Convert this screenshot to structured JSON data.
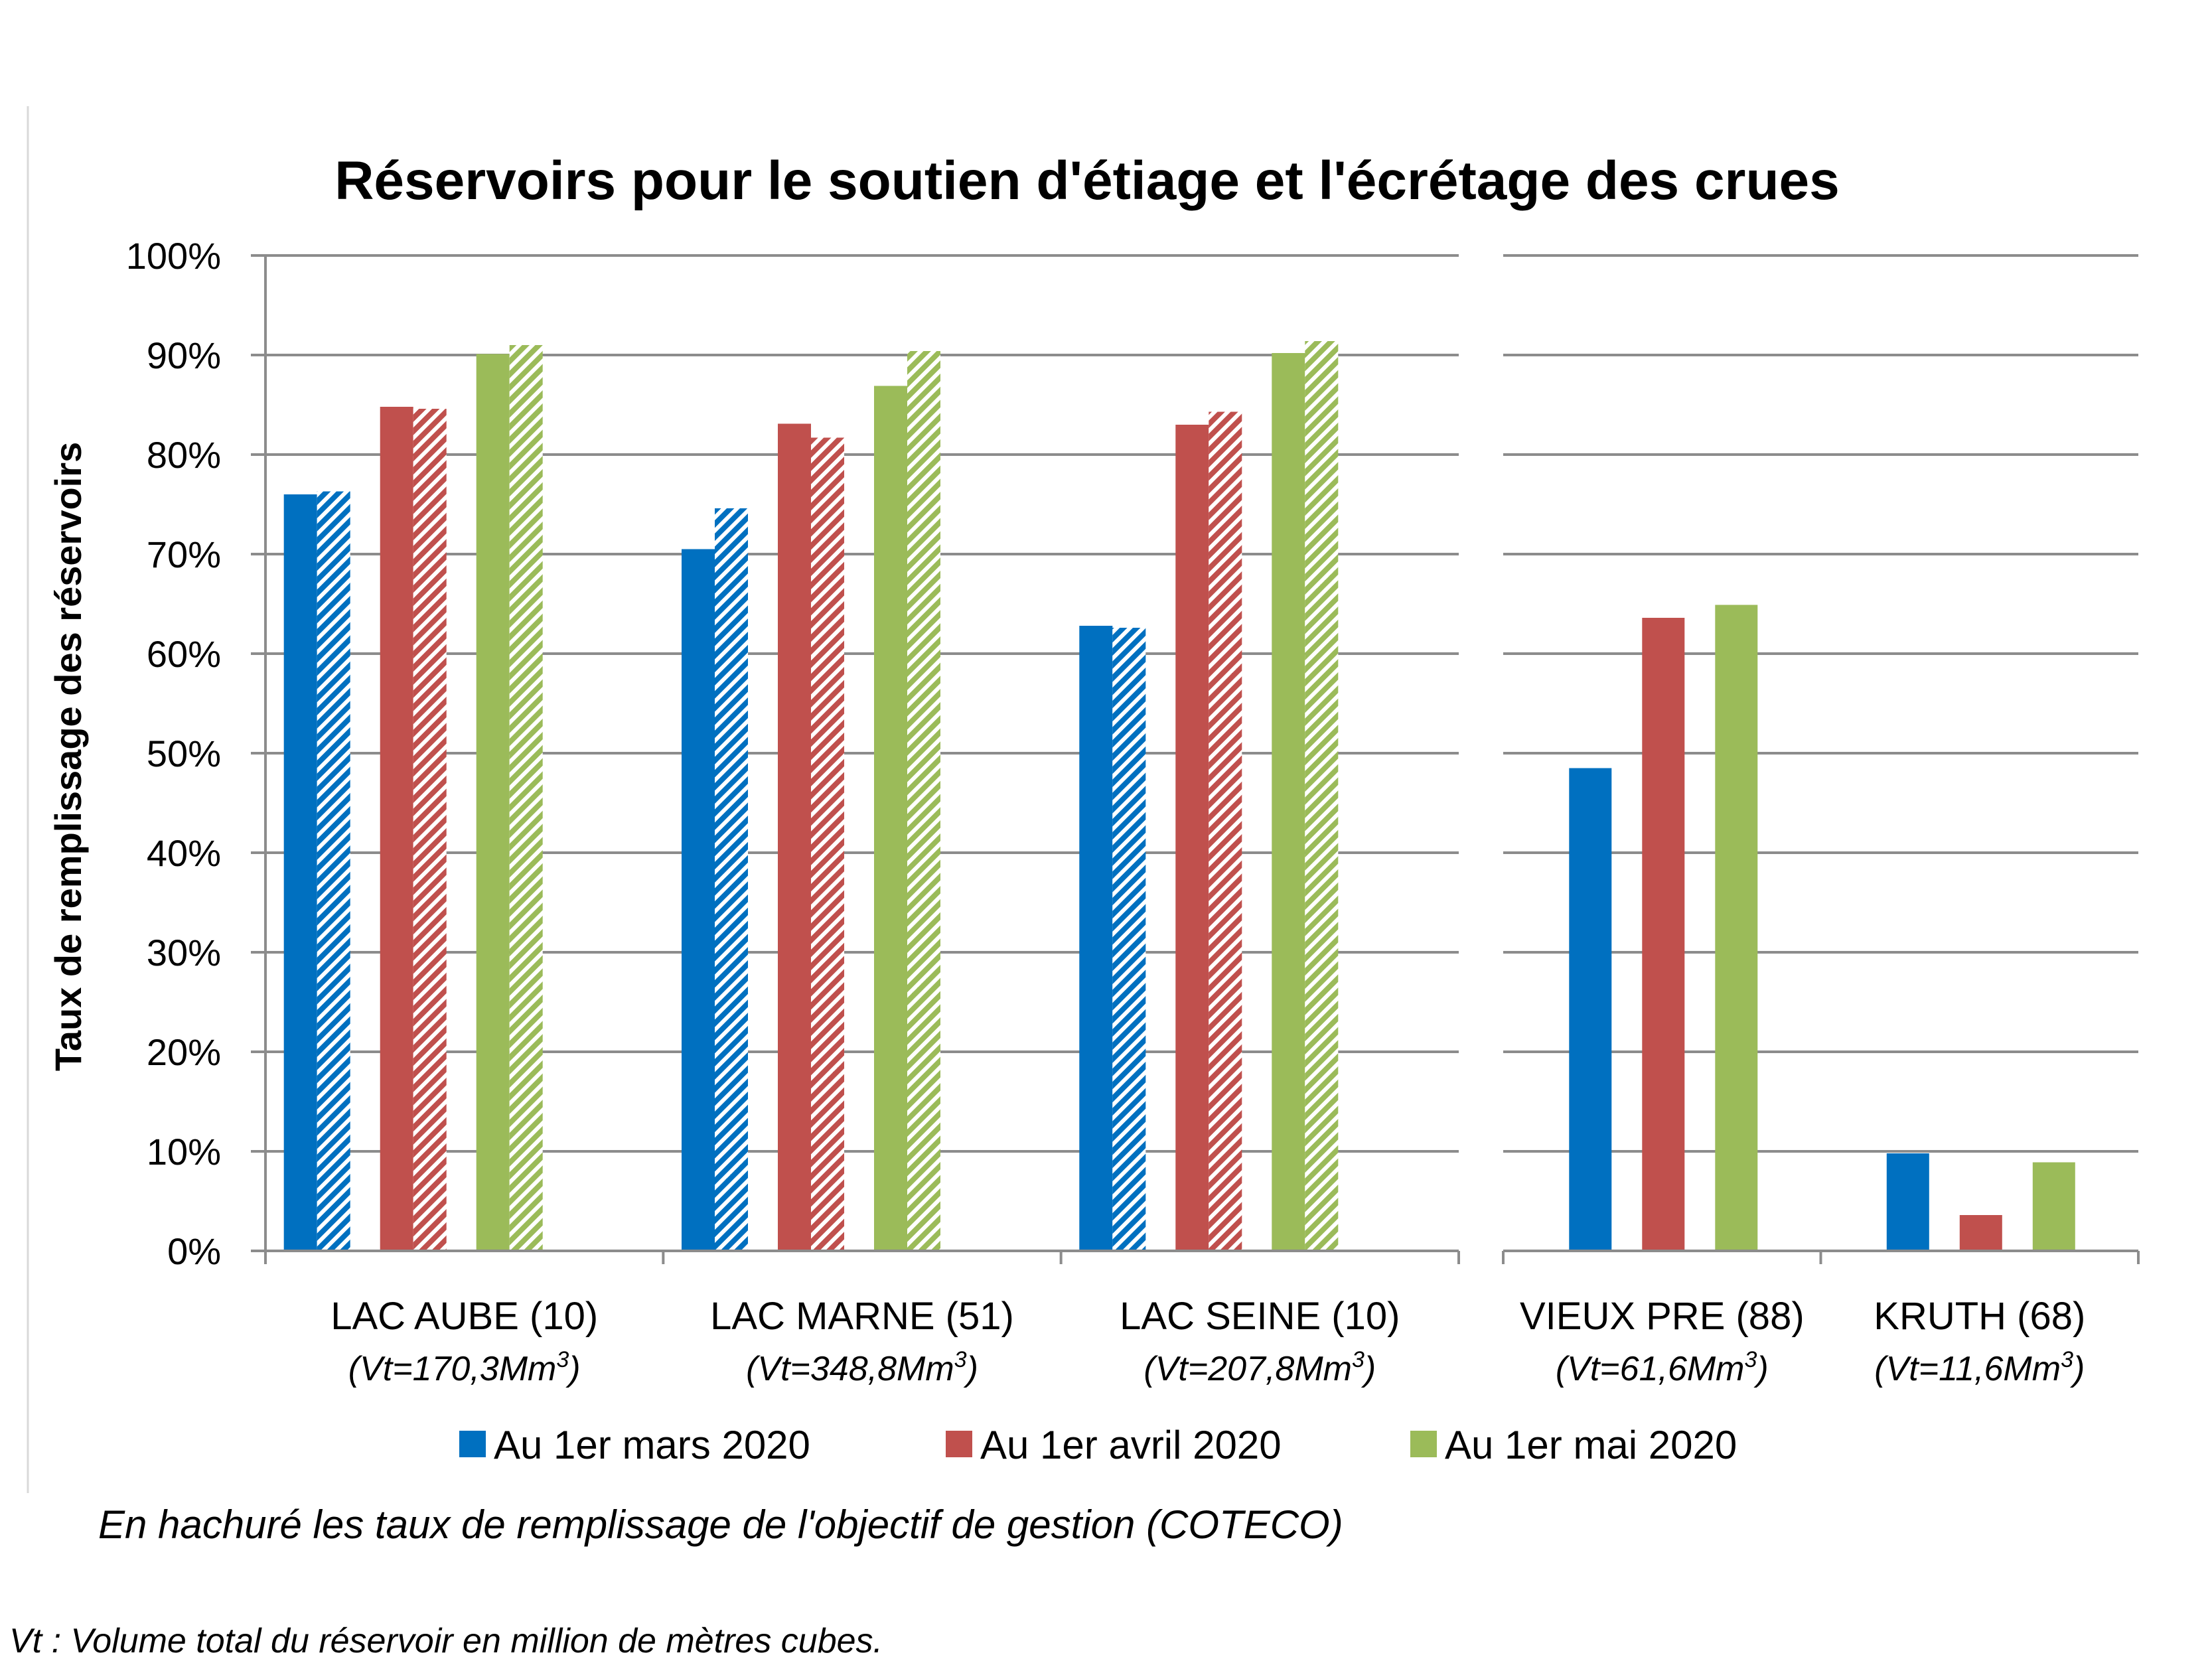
{
  "chart_data": {
    "type": "bar",
    "title": "Réservoirs pour le soutien d'étiage et l'écrétage des crues",
    "ylabel": "Taux de remplissage des réservoirs",
    "ylim": [
      0,
      100
    ],
    "yticks": [
      "0%",
      "10%",
      "20%",
      "30%",
      "40%",
      "50%",
      "60%",
      "70%",
      "80%",
      "90%",
      "100%"
    ],
    "grid": true,
    "legend_position": "bottom",
    "categories": [
      {
        "name": "LAC AUBE (10)",
        "volume_prefix": "(Vt=170,3Mm",
        "volume_exp": "3",
        "volume_suffix": ")"
      },
      {
        "name": "LAC MARNE (51)",
        "volume_prefix": "(Vt=348,8Mm",
        "volume_exp": "3",
        "volume_suffix": ")"
      },
      {
        "name": "LAC SEINE (10)",
        "volume_prefix": "(Vt=207,8Mm",
        "volume_exp": "3",
        "volume_suffix": ")"
      },
      {
        "name": "VIEUX PRE (88)",
        "volume_prefix": "(Vt=61,6Mm",
        "volume_exp": "3",
        "volume_suffix": ")"
      },
      {
        "name": "KRUTH (68)",
        "volume_prefix": "(Vt=11,6Mm",
        "volume_exp": "3",
        "volume_suffix": ")"
      }
    ],
    "series": [
      {
        "name": "Au 1er mars 2020",
        "color": "#0070C0",
        "values": [
          76.0,
          70.5,
          62.8,
          48.5,
          9.8
        ],
        "objective": [
          76.3,
          74.6,
          62.6,
          null,
          null
        ]
      },
      {
        "name": "Au 1er avril 2020",
        "color": "#C0504D",
        "values": [
          84.8,
          83.1,
          83.0,
          63.6,
          3.6
        ],
        "objective": [
          84.6,
          81.7,
          84.3,
          null,
          null
        ]
      },
      {
        "name": "Au 1er mai 2020",
        "color": "#9BBB59",
        "values": [
          90.1,
          86.9,
          90.2,
          64.9,
          8.9
        ],
        "objective": [
          91.0,
          90.4,
          91.4,
          null,
          null
        ]
      }
    ],
    "note": "En hachuré les taux de remplissage de l'objectif de gestion (COTECO)",
    "footnote": "Vt : Volume total du réservoir en million de mètres cubes."
  }
}
